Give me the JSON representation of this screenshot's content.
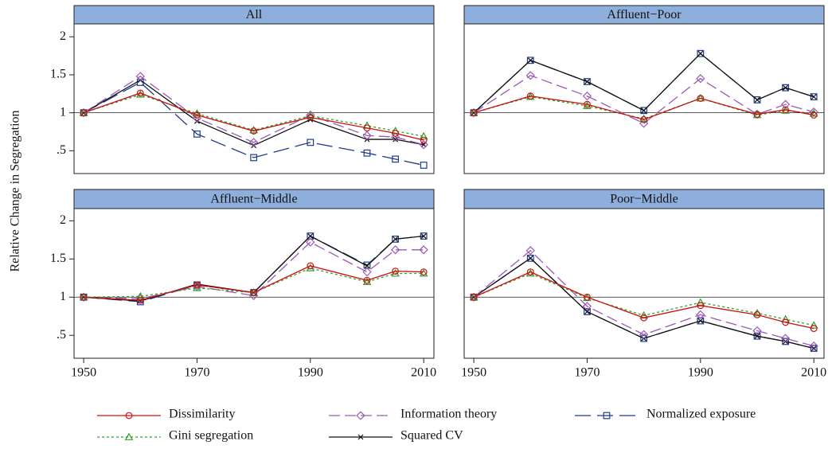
{
  "y_label": "Relative Change in Segregation",
  "chart_data": [
    {
      "type": "line",
      "title": "All",
      "xlim": [
        1948.3,
        2011.8
      ],
      "ylim": [
        0.2,
        2.17
      ],
      "reference_line": 1,
      "yticks": [
        {
          "value": 0.5,
          "label": ".5"
        },
        1,
        1.5,
        2
      ],
      "x": [
        1950,
        1960,
        1970,
        1980,
        1990,
        2000,
        2005,
        2010
      ],
      "series": [
        {
          "name": "Dissimilarity",
          "color": "#cc1111",
          "dash": "solid",
          "marker": "circle",
          "values": [
            1,
            1.26,
            0.97,
            0.76,
            0.94,
            0.8,
            0.73,
            0.64
          ]
        },
        {
          "name": "Gini segregation",
          "color": "#2ca02c",
          "dash": "dotted",
          "marker": "triangle",
          "values": [
            1,
            1.24,
            0.99,
            0.77,
            0.96,
            0.83,
            0.76,
            0.69
          ]
        },
        {
          "name": "Information theory",
          "color": "#9b59b6",
          "dash": "dashed",
          "marker": "diamond",
          "values": [
            1,
            1.48,
            0.93,
            0.61,
            0.97,
            0.7,
            0.68,
            0.58
          ]
        },
        {
          "name": "Squared CV",
          "color": "#111111",
          "dash": "solid",
          "marker": "cross",
          "values": [
            1,
            1.43,
            0.89,
            0.57,
            0.91,
            0.65,
            0.65,
            0.58
          ]
        },
        {
          "name": "Normalized exposure",
          "color": "#1f3b8c",
          "dash": "longdash",
          "marker": "square",
          "values": [
            1,
            1.4,
            0.72,
            0.41,
            0.61,
            0.47,
            0.39,
            0.31
          ]
        }
      ]
    },
    {
      "type": "line",
      "title": "Affluent−Poor",
      "xlim": [
        1948.3,
        2011.8
      ],
      "ylim": [
        0.2,
        2.17
      ],
      "reference_line": 1,
      "x": [
        1950,
        1960,
        1970,
        1980,
        1990,
        2000,
        2005,
        2010
      ],
      "series": [
        {
          "name": "Dissimilarity",
          "color": "#cc1111",
          "dash": "solid",
          "marker": "circle",
          "values": [
            1,
            1.22,
            1.11,
            0.91,
            1.19,
            0.98,
            1.04,
            0.97
          ]
        },
        {
          "name": "Gini segregation",
          "color": "#2ca02c",
          "dash": "dotted",
          "marker": "triangle",
          "values": [
            1,
            1.21,
            1.09,
            0.92,
            1.19,
            0.97,
            1.03,
            0.99
          ]
        },
        {
          "name": "Information theory",
          "color": "#9b59b6",
          "dash": "dashed",
          "marker": "diamond",
          "values": [
            1,
            1.49,
            1.22,
            0.86,
            1.45,
            0.98,
            1.11,
            1.01
          ]
        },
        {
          "name": "Squared CV",
          "color": "#111111",
          "dash": "solid",
          "marker": "cross",
          "values": [
            1,
            1.69,
            1.41,
            1.03,
            1.78,
            1.17,
            1.33,
            1.21
          ]
        },
        {
          "name": "Normalized exposure",
          "color": "#1f3b8c",
          "dash": "longdash",
          "marker": "square",
          "values": [
            1,
            1.69,
            1.41,
            1.03,
            1.78,
            1.17,
            1.33,
            1.21
          ]
        }
      ]
    },
    {
      "type": "line",
      "title": "Affluent−Middle",
      "xlim": [
        1948.3,
        2011.8
      ],
      "ylim": [
        0.2,
        2.16
      ],
      "reference_line": 1,
      "yticks": [
        {
          "value": 0.5,
          "label": ".5"
        },
        1,
        1.5,
        2
      ],
      "xticks": [
        1950,
        1970,
        1990,
        2010
      ],
      "x": [
        1950,
        1960,
        1970,
        1980,
        1990,
        2000,
        2005,
        2010
      ],
      "series": [
        {
          "name": "Dissimilarity",
          "color": "#cc1111",
          "dash": "solid",
          "marker": "circle",
          "values": [
            1,
            0.96,
            1.16,
            1.06,
            1.41,
            1.22,
            1.34,
            1.33
          ]
        },
        {
          "name": "Gini segregation",
          "color": "#2ca02c",
          "dash": "dotted",
          "marker": "triangle",
          "values": [
            1,
            1.01,
            1.12,
            1.06,
            1.38,
            1.2,
            1.31,
            1.31
          ]
        },
        {
          "name": "Information theory",
          "color": "#9b59b6",
          "dash": "dashed",
          "marker": "diamond",
          "values": [
            1,
            0.98,
            1.14,
            1.02,
            1.72,
            1.33,
            1.62,
            1.62
          ]
        },
        {
          "name": "Squared CV",
          "color": "#111111",
          "dash": "solid",
          "marker": "cross",
          "values": [
            1,
            0.95,
            1.17,
            1.06,
            1.8,
            1.41,
            1.76,
            1.8
          ]
        },
        {
          "name": "Normalized exposure",
          "color": "#1f3b8c",
          "dash": "longdash",
          "marker": "square",
          "values": [
            1,
            0.94,
            1.16,
            1.06,
            1.8,
            1.42,
            1.76,
            1.8
          ]
        }
      ]
    },
    {
      "type": "line",
      "title": "Poor−Middle",
      "xlim": [
        1948.3,
        2011.8
      ],
      "ylim": [
        0.2,
        2.16
      ],
      "reference_line": 1,
      "xticks": [
        1950,
        1970,
        1990,
        2010
      ],
      "x": [
        1950,
        1960,
        1970,
        1980,
        1990,
        2000,
        2005,
        2010
      ],
      "series": [
        {
          "name": "Dissimilarity",
          "color": "#cc1111",
          "dash": "solid",
          "marker": "circle",
          "values": [
            1,
            1.33,
            1.0,
            0.73,
            0.89,
            0.77,
            0.67,
            0.59
          ]
        },
        {
          "name": "Gini segregation",
          "color": "#2ca02c",
          "dash": "dotted",
          "marker": "triangle",
          "values": [
            1,
            1.31,
            0.99,
            0.76,
            0.93,
            0.79,
            0.71,
            0.63
          ]
        },
        {
          "name": "Information theory",
          "color": "#9b59b6",
          "dash": "dashed",
          "marker": "diamond",
          "values": [
            1,
            1.61,
            0.88,
            0.51,
            0.77,
            0.56,
            0.46,
            0.36
          ]
        },
        {
          "name": "Squared CV",
          "color": "#111111",
          "dash": "solid",
          "marker": "cross",
          "values": [
            1,
            1.51,
            0.81,
            0.46,
            0.69,
            0.49,
            0.42,
            0.33
          ]
        },
        {
          "name": "Normalized exposure",
          "color": "#1f3b8c",
          "dash": "longdash",
          "marker": "square",
          "values": [
            1,
            1.51,
            0.81,
            0.46,
            0.69,
            0.49,
            0.42,
            0.33
          ]
        }
      ]
    }
  ]
}
